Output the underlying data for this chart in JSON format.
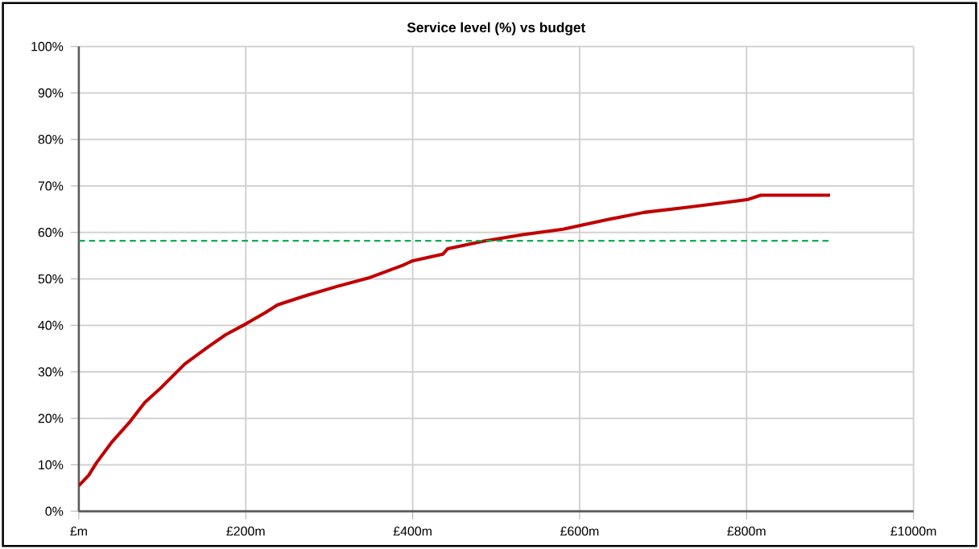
{
  "chart_data": {
    "type": "line",
    "title": "Service level (%) vs budget",
    "series": [
      {
        "color": "#c00000",
        "x": [
          0,
          12,
          21,
          40,
          60,
          79,
          98,
          127,
          156,
          176,
          201,
          224,
          238,
          272,
          310,
          349,
          388,
          400,
          436,
          442,
          484,
          532,
          580,
          629,
          677,
          725,
          773,
          802,
          817,
          900
        ],
        "values": [
          5.5,
          7.8,
          10.4,
          15,
          19,
          23.4,
          26.5,
          31.7,
          35.5,
          38,
          40.4,
          42.8,
          44.4,
          46.4,
          48.4,
          50.3,
          52.9,
          53.9,
          55.3,
          56.5,
          58.1,
          59.5,
          60.7,
          62.6,
          64.3,
          65.3,
          66.4,
          67.1,
          68,
          68
        ]
      },
      {
        "color": "#00b050",
        "line_style": "dashed",
        "x": [
          0,
          900
        ],
        "values": [
          58.2,
          58.2
        ]
      }
    ],
    "xlim": [
      0,
      1000
    ],
    "ylim": [
      0,
      100
    ],
    "xticks": [
      {
        "value": 0,
        "label": "£m"
      },
      {
        "value": 200,
        "label": "£200m"
      },
      {
        "value": 400,
        "label": "£400m"
      },
      {
        "value": 600,
        "label": "£600m"
      },
      {
        "value": 800,
        "label": "£800m"
      },
      {
        "value": 1000,
        "label": "£1000m"
      }
    ],
    "yticks": [
      {
        "value": 0,
        "label": "0%"
      },
      {
        "value": 10,
        "label": "10%"
      },
      {
        "value": 20,
        "label": "20%"
      },
      {
        "value": 30,
        "label": "30%"
      },
      {
        "value": 40,
        "label": "40%"
      },
      {
        "value": 50,
        "label": "50%"
      },
      {
        "value": 60,
        "label": "60%"
      },
      {
        "value": 70,
        "label": "70%"
      },
      {
        "value": 80,
        "label": "80%"
      },
      {
        "value": 90,
        "label": "90%"
      },
      {
        "value": 100,
        "label": "100%"
      }
    ],
    "grid": true,
    "marker": "none"
  }
}
